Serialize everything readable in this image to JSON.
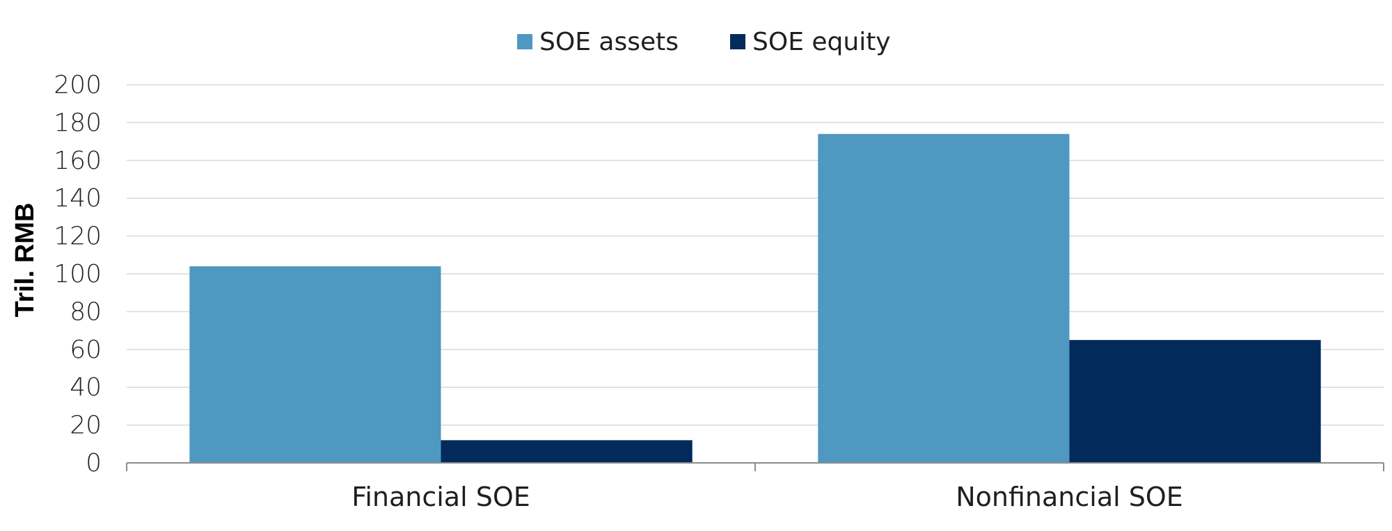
{
  "chart_data": {
    "type": "bar",
    "categories": [
      "Financial SOE",
      "Nonfinancial SOE"
    ],
    "series": [
      {
        "name": "SOE assets",
        "values": [
          104,
          174
        ],
        "color": "#4f98c2"
      },
      {
        "name": "SOE equity",
        "values": [
          12,
          65
        ],
        "color": "#022b5c"
      }
    ],
    "title": "",
    "xlabel": "",
    "ylabel": "Tril. RMB",
    "ylim": [
      0,
      200
    ],
    "yticks": [
      0,
      20,
      40,
      60,
      80,
      100,
      120,
      140,
      160,
      180,
      200
    ],
    "grid": true,
    "legend": "top-center"
  }
}
